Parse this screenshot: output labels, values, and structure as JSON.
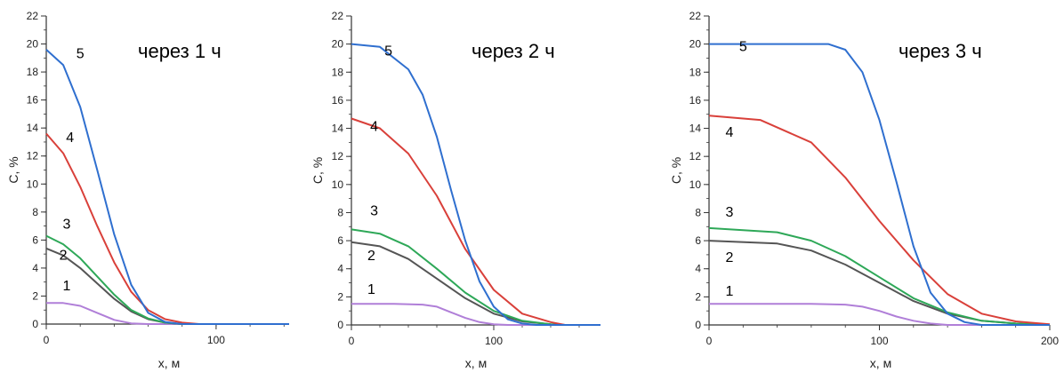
{
  "chart_data": [
    {
      "type": "line",
      "annotation": "через 1 ч",
      "xlabel": "x, м",
      "ylabel": "C, %",
      "xlim": [
        0,
        143
      ],
      "ylim": [
        0,
        22
      ],
      "xticks": [
        0,
        100
      ],
      "yticks": [
        0,
        2,
        4,
        6,
        8,
        10,
        12,
        14,
        16,
        18,
        20,
        22
      ],
      "series": [
        {
          "label": "1",
          "color": "#b07fd8",
          "points": [
            [
              0,
              1.5
            ],
            [
              10,
              1.5
            ],
            [
              20,
              1.3
            ],
            [
              30,
              0.8
            ],
            [
              40,
              0.3
            ],
            [
              50,
              0.05
            ],
            [
              60,
              0
            ],
            [
              143,
              0
            ]
          ]
        },
        {
          "label": "2",
          "color": "#555555",
          "points": [
            [
              0,
              5.4
            ],
            [
              10,
              4.9
            ],
            [
              20,
              4.0
            ],
            [
              30,
              2.9
            ],
            [
              40,
              1.8
            ],
            [
              50,
              0.9
            ],
            [
              60,
              0.35
            ],
            [
              70,
              0.1
            ],
            [
              80,
              0
            ],
            [
              143,
              0
            ]
          ]
        },
        {
          "label": "3",
          "color": "#2ea858",
          "points": [
            [
              0,
              6.3
            ],
            [
              10,
              5.7
            ],
            [
              20,
              4.7
            ],
            [
              30,
              3.4
            ],
            [
              40,
              2.1
            ],
            [
              50,
              1.0
            ],
            [
              60,
              0.4
            ],
            [
              70,
              0.1
            ],
            [
              80,
              0
            ],
            [
              143,
              0
            ]
          ]
        },
        {
          "label": "4",
          "color": "#d9403a",
          "points": [
            [
              0,
              13.6
            ],
            [
              10,
              12.2
            ],
            [
              20,
              9.8
            ],
            [
              30,
              7.0
            ],
            [
              40,
              4.4
            ],
            [
              50,
              2.3
            ],
            [
              60,
              1.0
            ],
            [
              70,
              0.35
            ],
            [
              80,
              0.1
            ],
            [
              90,
              0
            ],
            [
              143,
              0
            ]
          ]
        },
        {
          "label": "5",
          "color": "#2f6fcf",
          "points": [
            [
              0,
              19.6
            ],
            [
              10,
              18.5
            ],
            [
              20,
              15.5
            ],
            [
              30,
              11.0
            ],
            [
              40,
              6.4
            ],
            [
              50,
              2.8
            ],
            [
              60,
              0.8
            ],
            [
              70,
              0.15
            ],
            [
              80,
              0
            ],
            [
              143,
              0
            ]
          ]
        }
      ],
      "curve_label_positions": {
        "1": [
          12,
          2.4
        ],
        "2": [
          10,
          4.6
        ],
        "3": [
          12,
          6.8
        ],
        "4": [
          14,
          13.0
        ],
        "5": [
          20,
          19.0
        ]
      }
    },
    {
      "type": "line",
      "annotation": "через 2 ч",
      "xlabel": "x, м",
      "ylabel": "C, %",
      "xlim": [
        0,
        175
      ],
      "ylim": [
        0,
        22
      ],
      "xticks": [
        0,
        100
      ],
      "yticks": [
        0,
        2,
        4,
        6,
        8,
        10,
        12,
        14,
        16,
        18,
        20,
        22
      ],
      "series": [
        {
          "label": "1",
          "color": "#b07fd8",
          "points": [
            [
              0,
              1.5
            ],
            [
              30,
              1.5
            ],
            [
              50,
              1.45
            ],
            [
              60,
              1.3
            ],
            [
              70,
              0.9
            ],
            [
              80,
              0.5
            ],
            [
              90,
              0.2
            ],
            [
              100,
              0.05
            ],
            [
              110,
              0
            ],
            [
              175,
              0
            ]
          ]
        },
        {
          "label": "2",
          "color": "#555555",
          "points": [
            [
              0,
              5.9
            ],
            [
              20,
              5.6
            ],
            [
              40,
              4.7
            ],
            [
              60,
              3.3
            ],
            [
              80,
              1.9
            ],
            [
              100,
              0.8
            ],
            [
              120,
              0.25
            ],
            [
              140,
              0.05
            ],
            [
              150,
              0
            ],
            [
              175,
              0
            ]
          ]
        },
        {
          "label": "3",
          "color": "#2ea858",
          "points": [
            [
              0,
              6.8
            ],
            [
              20,
              6.5
            ],
            [
              40,
              5.6
            ],
            [
              60,
              4.0
            ],
            [
              80,
              2.3
            ],
            [
              100,
              1.0
            ],
            [
              120,
              0.3
            ],
            [
              140,
              0.05
            ],
            [
              150,
              0
            ],
            [
              175,
              0
            ]
          ]
        },
        {
          "label": "4",
          "color": "#d9403a",
          "points": [
            [
              0,
              14.7
            ],
            [
              20,
              14.0
            ],
            [
              40,
              12.2
            ],
            [
              60,
              9.2
            ],
            [
              80,
              5.4
            ],
            [
              100,
              2.5
            ],
            [
              120,
              0.8
            ],
            [
              140,
              0.2
            ],
            [
              150,
              0
            ],
            [
              175,
              0
            ]
          ]
        },
        {
          "label": "5",
          "color": "#2f6fcf",
          "points": [
            [
              0,
              20.0
            ],
            [
              20,
              19.8
            ],
            [
              40,
              18.2
            ],
            [
              50,
              16.4
            ],
            [
              60,
              13.4
            ],
            [
              70,
              9.6
            ],
            [
              80,
              6.0
            ],
            [
              90,
              3.1
            ],
            [
              100,
              1.3
            ],
            [
              110,
              0.4
            ],
            [
              120,
              0.1
            ],
            [
              130,
              0
            ],
            [
              175,
              0
            ]
          ]
        }
      ],
      "curve_label_positions": {
        "1": [
          14,
          2.2
        ],
        "2": [
          14,
          4.6
        ],
        "3": [
          16,
          7.8
        ],
        "4": [
          16,
          13.8
        ],
        "5": [
          26,
          19.2
        ]
      }
    },
    {
      "type": "line",
      "annotation": "через 3 ч",
      "xlabel": "x, м",
      "ylabel": "C, %",
      "xlim": [
        0,
        200
      ],
      "ylim": [
        0,
        22
      ],
      "xticks": [
        0,
        100,
        200
      ],
      "yticks": [
        0,
        2,
        4,
        6,
        8,
        10,
        12,
        14,
        16,
        18,
        20,
        22
      ],
      "series": [
        {
          "label": "1",
          "color": "#b07fd8",
          "points": [
            [
              0,
              1.5
            ],
            [
              60,
              1.5
            ],
            [
              80,
              1.45
            ],
            [
              90,
              1.3
            ],
            [
              100,
              1.0
            ],
            [
              110,
              0.6
            ],
            [
              120,
              0.3
            ],
            [
              130,
              0.1
            ],
            [
              140,
              0
            ],
            [
              200,
              0
            ]
          ]
        },
        {
          "label": "2",
          "color": "#555555",
          "points": [
            [
              0,
              6.0
            ],
            [
              40,
              5.8
            ],
            [
              60,
              5.3
            ],
            [
              80,
              4.3
            ],
            [
              100,
              3.0
            ],
            [
              120,
              1.7
            ],
            [
              140,
              0.8
            ],
            [
              160,
              0.3
            ],
            [
              180,
              0.1
            ],
            [
              200,
              0
            ]
          ]
        },
        {
          "label": "3",
          "color": "#2ea858",
          "points": [
            [
              0,
              6.9
            ],
            [
              40,
              6.6
            ],
            [
              60,
              6.0
            ],
            [
              80,
              4.9
            ],
            [
              100,
              3.4
            ],
            [
              120,
              1.9
            ],
            [
              140,
              0.9
            ],
            [
              160,
              0.3
            ],
            [
              180,
              0.1
            ],
            [
              200,
              0
            ]
          ]
        },
        {
          "label": "4",
          "color": "#d9403a",
          "points": [
            [
              0,
              14.9
            ],
            [
              30,
              14.6
            ],
            [
              60,
              13.0
            ],
            [
              80,
              10.5
            ],
            [
              100,
              7.4
            ],
            [
              120,
              4.6
            ],
            [
              140,
              2.2
            ],
            [
              160,
              0.8
            ],
            [
              180,
              0.25
            ],
            [
              200,
              0.05
            ]
          ]
        },
        {
          "label": "5",
          "color": "#2f6fcf",
          "points": [
            [
              0,
              20.0
            ],
            [
              70,
              20.0
            ],
            [
              80,
              19.6
            ],
            [
              90,
              18.0
            ],
            [
              100,
              14.6
            ],
            [
              110,
              10.2
            ],
            [
              120,
              5.6
            ],
            [
              130,
              2.3
            ],
            [
              140,
              0.8
            ],
            [
              150,
              0.2
            ],
            [
              160,
              0
            ],
            [
              200,
              0
            ]
          ]
        }
      ],
      "curve_label_positions": {
        "1": [
          12,
          2.1
        ],
        "2": [
          12,
          4.5
        ],
        "3": [
          12,
          7.7
        ],
        "4": [
          12,
          13.4
        ],
        "5": [
          20,
          19.5
        ]
      }
    }
  ]
}
